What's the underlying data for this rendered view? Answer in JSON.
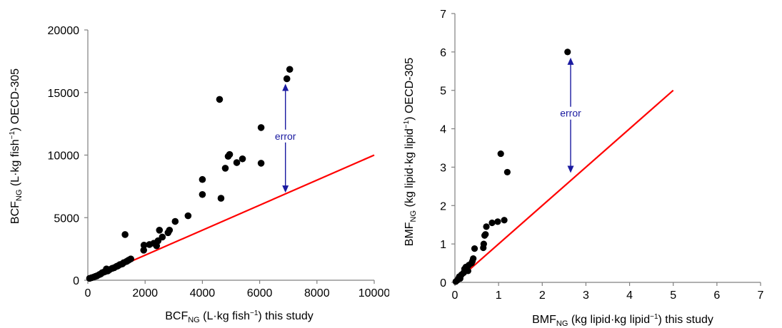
{
  "chart_data": [
    {
      "type": "scatter",
      "xlabel": {
        "main": "BCF",
        "sub": "NG",
        "before_sup": " (L·kg fish",
        "sup": "−1",
        "after_sup": ") this study"
      },
      "ylabel": {
        "main": "BCF",
        "sub": "NG",
        "before_sup": " (L·kg fish",
        "sup": "−1",
        "after_sup": ") OECD-305"
      },
      "xlim": [
        0,
        10000
      ],
      "ylim": [
        0,
        20000
      ],
      "xticks": [
        0,
        2000,
        4000,
        6000,
        8000,
        10000
      ],
      "yticks": [
        0,
        5000,
        10000,
        15000,
        20000
      ],
      "xtick_labels": [
        "0",
        "2000",
        "4000",
        "6000",
        "8000",
        "10000"
      ],
      "ytick_labels": [
        "0",
        "5000",
        "10000",
        "15000",
        "20000"
      ],
      "grid": false,
      "series": [
        {
          "marker": "circle",
          "color": "#000000",
          "points": [
            [
              60,
              150
            ],
            [
              130,
              200
            ],
            [
              200,
              250
            ],
            [
              260,
              300
            ],
            [
              320,
              350
            ],
            [
              400,
              450
            ],
            [
              450,
              500
            ],
            [
              500,
              600
            ],
            [
              560,
              650
            ],
            [
              620,
              700
            ],
            [
              650,
              900
            ],
            [
              700,
              750
            ],
            [
              760,
              850
            ],
            [
              850,
              950
            ],
            [
              920,
              1000
            ],
            [
              1000,
              1100
            ],
            [
              1050,
              1150
            ],
            [
              1120,
              1250
            ],
            [
              1200,
              1300
            ],
            [
              1250,
              1400
            ],
            [
              1300,
              3650
            ],
            [
              1350,
              1500
            ],
            [
              1420,
              1600
            ],
            [
              1500,
              1700
            ],
            [
              1950,
              2400
            ],
            [
              1960,
              2800
            ],
            [
              2150,
              2850
            ],
            [
              2300,
              2950
            ],
            [
              2400,
              2750
            ],
            [
              2450,
              3150
            ],
            [
              2500,
              4000
            ],
            [
              2600,
              3450
            ],
            [
              2800,
              3800
            ],
            [
              2850,
              4000
            ],
            [
              3050,
              4700
            ],
            [
              3500,
              5150
            ],
            [
              4000,
              8050
            ],
            [
              4000,
              6850
            ],
            [
              4600,
              14450
            ],
            [
              4650,
              6550
            ],
            [
              4800,
              8950
            ],
            [
              4900,
              9900
            ],
            [
              4950,
              10050
            ],
            [
              5200,
              9400
            ],
            [
              5400,
              9700
            ],
            [
              6050,
              12200
            ],
            [
              6050,
              9350
            ],
            [
              6950,
              16100
            ],
            [
              7050,
              16850
            ]
          ]
        }
      ],
      "reference_line": {
        "name": "1:1 line",
        "color": "#ff0000",
        "from": [
          0,
          0
        ],
        "to": [
          10000,
          10000
        ]
      },
      "annotation": {
        "text": "error",
        "x": 6900,
        "y_from": 7000,
        "y_to": 15700,
        "color": "#1a1aa0"
      }
    },
    {
      "type": "scatter",
      "xlabel": {
        "main": "BMF",
        "sub": "NG",
        "before_sup": " (kg lipid·kg lipid",
        "sup": "−1",
        "after_sup": ") this study"
      },
      "ylabel": {
        "main": "BMF",
        "sub": "NG",
        "before_sup": " (kg lipid·kg lipid",
        "sup": "−1",
        "after_sup": ") OECD-305"
      },
      "xlim": [
        0,
        7
      ],
      "ylim": [
        0,
        7
      ],
      "xticks": [
        0,
        1,
        2,
        3,
        4,
        5,
        6,
        7
      ],
      "yticks": [
        0,
        1,
        2,
        3,
        4,
        5,
        6,
        7
      ],
      "xtick_labels": [
        "0",
        "1",
        "2",
        "3",
        "4",
        "5",
        "6",
        "7"
      ],
      "ytick_labels": [
        "0",
        "1",
        "2",
        "3",
        "4",
        "5",
        "6",
        "7"
      ],
      "grid": false,
      "series": [
        {
          "marker": "circle",
          "color": "#000000",
          "points": [
            [
              0.02,
              0.02
            ],
            [
              0.05,
              0.05
            ],
            [
              0.08,
              0.1
            ],
            [
              0.1,
              0.15
            ],
            [
              0.12,
              0.1
            ],
            [
              0.15,
              0.2
            ],
            [
              0.2,
              0.25
            ],
            [
              0.22,
              0.35
            ],
            [
              0.25,
              0.4
            ],
            [
              0.3,
              0.3
            ],
            [
              0.32,
              0.45
            ],
            [
              0.38,
              0.5
            ],
            [
              0.4,
              0.55
            ],
            [
              0.42,
              0.62
            ],
            [
              0.45,
              0.88
            ],
            [
              0.65,
              0.9
            ],
            [
              0.66,
              1.0
            ],
            [
              0.68,
              1.22
            ],
            [
              0.7,
              1.25
            ],
            [
              0.72,
              1.45
            ],
            [
              0.85,
              1.55
            ],
            [
              0.98,
              1.58
            ],
            [
              1.05,
              3.35
            ],
            [
              1.13,
              1.62
            ],
            [
              1.2,
              2.87
            ],
            [
              2.58,
              6.0
            ]
          ]
        }
      ],
      "reference_line": {
        "name": "1:1 line",
        "color": "#ff0000",
        "from": [
          0,
          0
        ],
        "to": [
          5,
          5
        ]
      },
      "annotation": {
        "text": "error",
        "x": 2.65,
        "y_from": 2.85,
        "y_to": 5.85,
        "color": "#1a1aa0"
      }
    }
  ]
}
